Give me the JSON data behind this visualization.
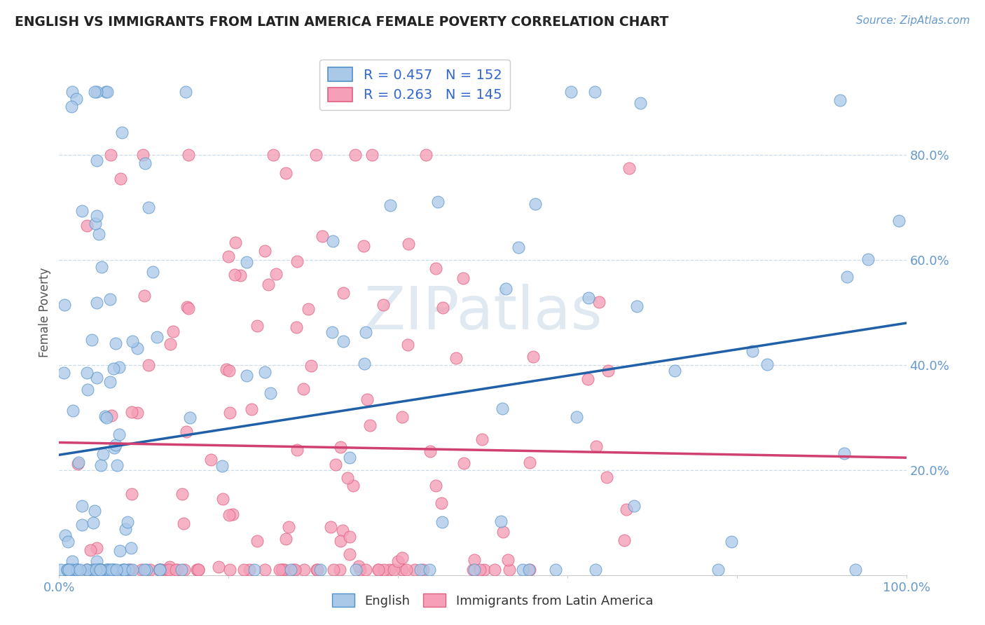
{
  "title": "ENGLISH VS IMMIGRANTS FROM LATIN AMERICA FEMALE POVERTY CORRELATION CHART",
  "source": "Source: ZipAtlas.com",
  "ylabel": "Female Poverty",
  "series1_label": "English",
  "series2_label": "Immigrants from Latin America",
  "series1_color": "#aac8e8",
  "series2_color": "#f5a0b8",
  "series1_edge_color": "#5090c8",
  "series2_edge_color": "#e06080",
  "series1_line_color": "#2060a8",
  "series2_line_color": "#d04070",
  "series1_R": 0.457,
  "series1_N": 152,
  "series2_R": 0.263,
  "series2_N": 145,
  "xlim": [
    0.0,
    1.0
  ],
  "ylim": [
    0.0,
    1.0
  ],
  "background_color": "#ffffff",
  "watermark_color": "#c8d8e8",
  "title_color": "#222222",
  "axis_tick_color": "#6699cc",
  "legend_text_color": "#3366cc",
  "grid_color": "#c8dced",
  "grid_style": "--",
  "seed": 12
}
